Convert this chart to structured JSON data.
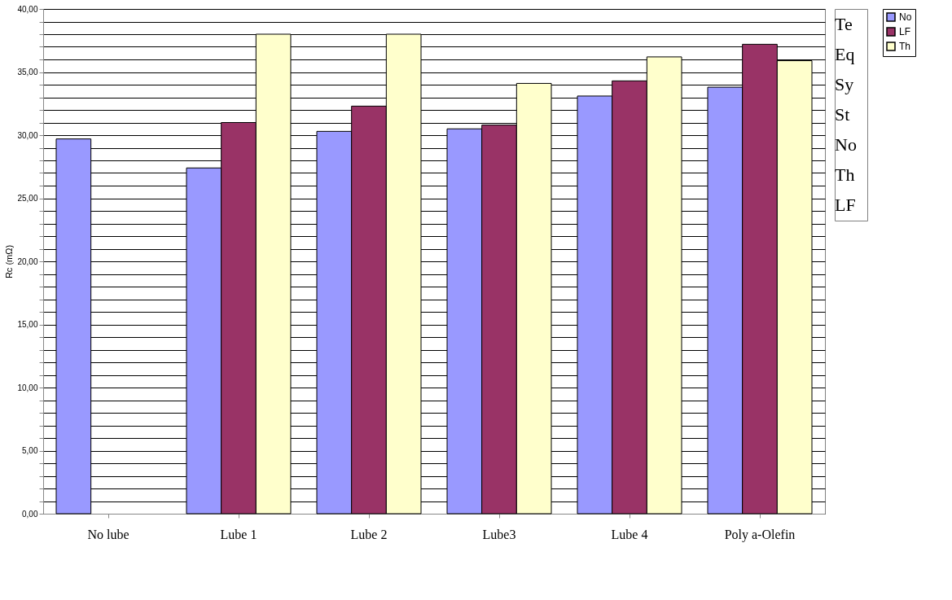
{
  "chart_data": {
    "type": "bar",
    "categories": [
      "No lube",
      "Lube 1",
      "Lube 2",
      "Lube3",
      "Lube 4",
      "Poly a-Olefin"
    ],
    "series": [
      {
        "name": "No",
        "color": "#9999ff",
        "values": [
          29.7,
          27.4,
          30.3,
          30.5,
          33.1,
          33.8
        ]
      },
      {
        "name": "LF",
        "color": "#993366",
        "values": [
          null,
          31.0,
          32.3,
          30.8,
          34.3,
          37.2
        ]
      },
      {
        "name": "Th",
        "color": "#ffffcc",
        "values": [
          null,
          38.0,
          38.0,
          34.1,
          36.2,
          35.9
        ]
      }
    ],
    "ylabel": "Rc (mΩ)",
    "ylim": [
      0,
      40
    ],
    "yticks": [
      {
        "value": 0,
        "label": "0,00"
      },
      {
        "value": 1,
        "label": null
      },
      {
        "value": 2,
        "label": null
      },
      {
        "value": 3,
        "label": null
      },
      {
        "value": 4,
        "label": null
      },
      {
        "value": 5,
        "label": "5,00"
      },
      {
        "value": 6,
        "label": null
      },
      {
        "value": 7,
        "label": null
      },
      {
        "value": 8,
        "label": null
      },
      {
        "value": 9,
        "label": null
      },
      {
        "value": 10,
        "label": "10,00"
      },
      {
        "value": 11,
        "label": null
      },
      {
        "value": 12,
        "label": null
      },
      {
        "value": 13,
        "label": null
      },
      {
        "value": 14,
        "label": null
      },
      {
        "value": 15,
        "label": "15,00"
      },
      {
        "value": 16,
        "label": null
      },
      {
        "value": 17,
        "label": null
      },
      {
        "value": 18,
        "label": null
      },
      {
        "value": 19,
        "label": null
      },
      {
        "value": 20,
        "label": "20,00"
      },
      {
        "value": 21,
        "label": null
      },
      {
        "value": 22,
        "label": null
      },
      {
        "value": 23,
        "label": null
      },
      {
        "value": 24,
        "label": null
      },
      {
        "value": 25,
        "label": "25,00"
      },
      {
        "value": 26,
        "label": null
      },
      {
        "value": 27,
        "label": null
      },
      {
        "value": 28,
        "label": null
      },
      {
        "value": 29,
        "label": null
      },
      {
        "value": 30,
        "label": "30,00"
      },
      {
        "value": 31,
        "label": null
      },
      {
        "value": 32,
        "label": null
      },
      {
        "value": 33,
        "label": null
      },
      {
        "value": 34,
        "label": null
      },
      {
        "value": 35,
        "label": "35,00"
      },
      {
        "value": 36,
        "label": null
      },
      {
        "value": 37,
        "label": null
      },
      {
        "value": 38,
        "label": null
      },
      {
        "value": 39,
        "label": null
      },
      {
        "value": 40,
        "label": "40,00"
      }
    ],
    "grid": "y",
    "legend": "right",
    "annotations": [
      "Te",
      "Eq",
      "Sy",
      "St",
      "No",
      "Th",
      "LF"
    ]
  }
}
